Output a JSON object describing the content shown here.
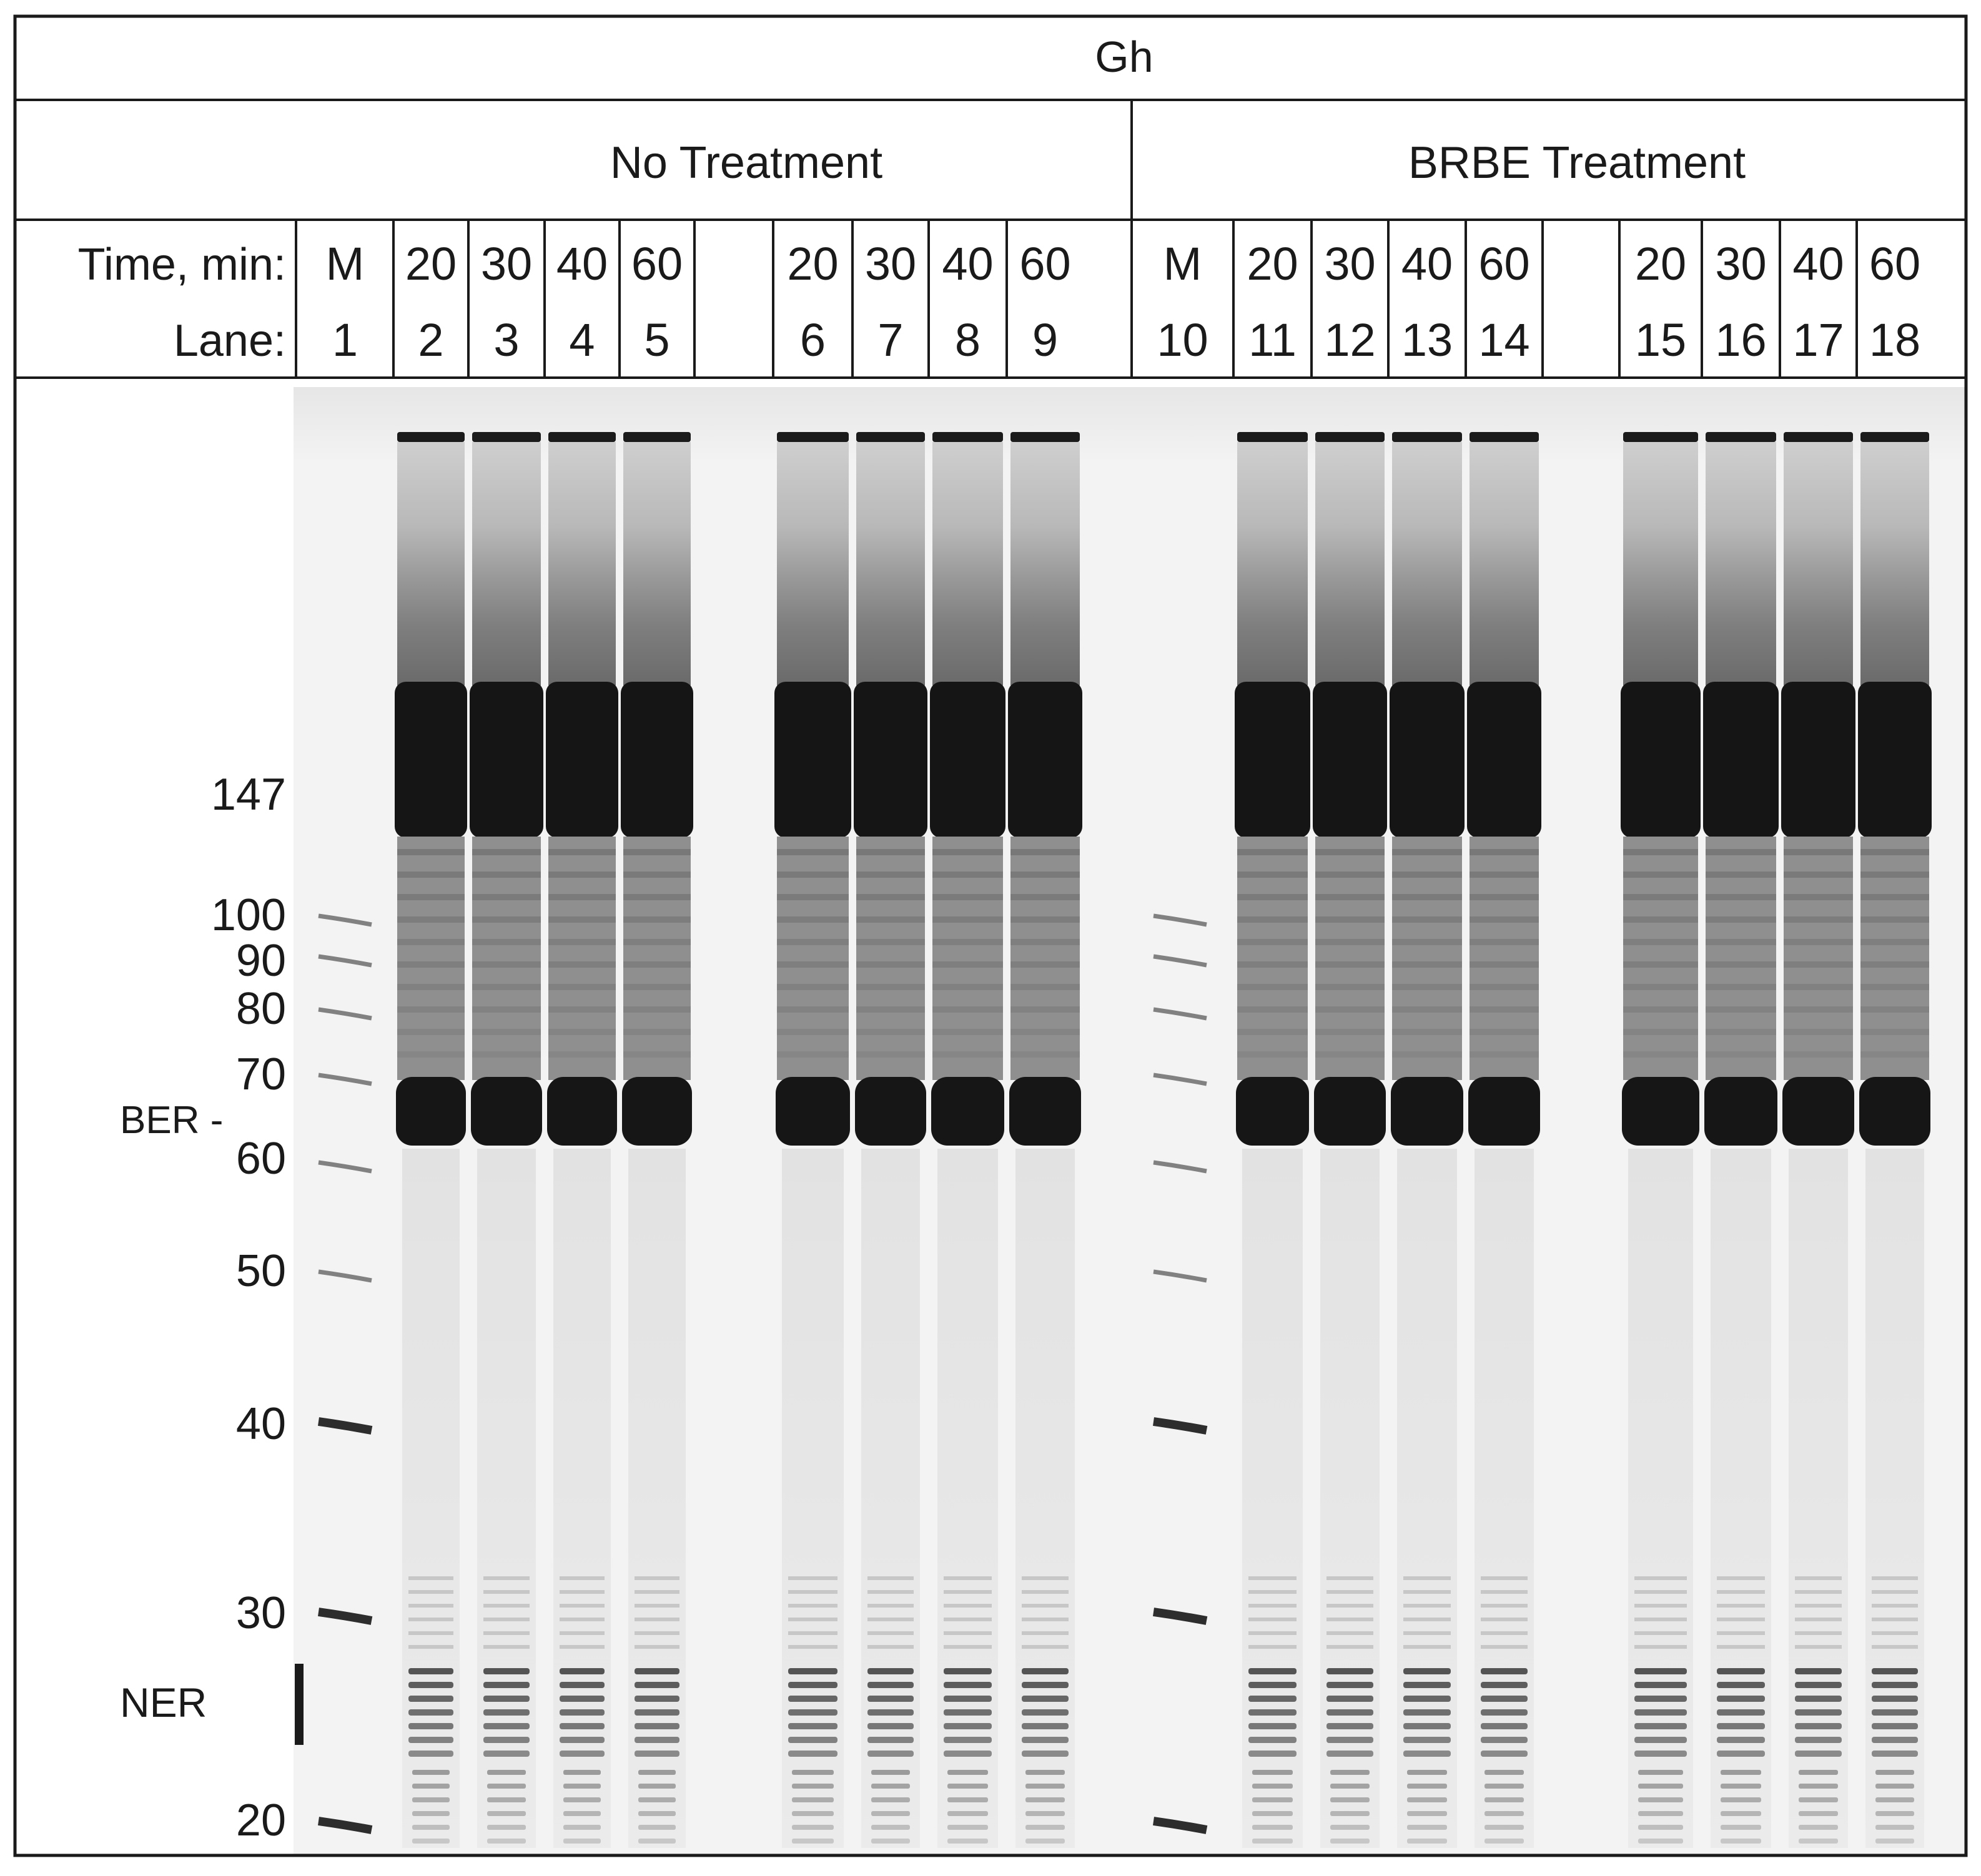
{
  "title": "Gh",
  "groups": [
    {
      "label": "No Treatment",
      "lanes": [
        {
          "time": "M",
          "lane": "1",
          "type": "marker"
        },
        {
          "time": "20",
          "lane": "2",
          "type": "sample"
        },
        {
          "time": "30",
          "lane": "3",
          "type": "sample"
        },
        {
          "time": "40",
          "lane": "4",
          "type": "sample"
        },
        {
          "time": "60",
          "lane": "5",
          "type": "sample"
        },
        {
          "time": "20",
          "lane": "6",
          "type": "sample"
        },
        {
          "time": "30",
          "lane": "7",
          "type": "sample"
        },
        {
          "time": "40",
          "lane": "8",
          "type": "sample"
        },
        {
          "time": "60",
          "lane": "9",
          "type": "sample"
        }
      ]
    },
    {
      "label": "BRBE Treatment",
      "lanes": [
        {
          "time": "M",
          "lane": "10",
          "type": "marker"
        },
        {
          "time": "20",
          "lane": "11",
          "type": "sample"
        },
        {
          "time": "30",
          "lane": "12",
          "type": "sample"
        },
        {
          "time": "40",
          "lane": "13",
          "type": "sample"
        },
        {
          "time": "60",
          "lane": "14",
          "type": "sample"
        },
        {
          "time": "20",
          "lane": "15",
          "type": "sample"
        },
        {
          "time": "30",
          "lane": "16",
          "type": "sample"
        },
        {
          "time": "40",
          "lane": "17",
          "type": "sample"
        },
        {
          "time": "60",
          "lane": "18",
          "type": "sample"
        }
      ]
    }
  ],
  "row_labels": {
    "time": "Time, min:",
    "lane": "Lane:"
  },
  "size_markers": [
    "147",
    "100",
    "90",
    "80",
    "70",
    "60",
    "50",
    "40",
    "30",
    "20"
  ],
  "annotations": {
    "ber": "BER -",
    "ner": "NER"
  },
  "colors": {
    "ink": "#1a1a1a",
    "gel_background": "#f4f4f4",
    "band": "#161616",
    "smear": "#7a7a7a"
  }
}
